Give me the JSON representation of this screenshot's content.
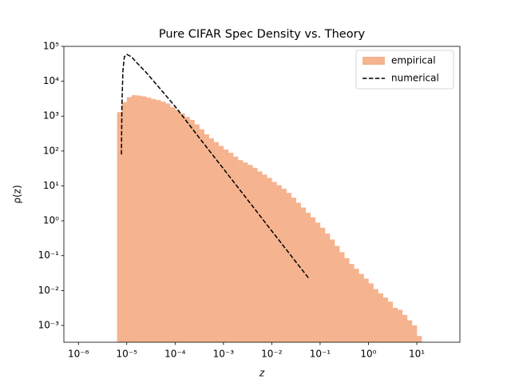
{
  "chart_data": {
    "type": "histogram",
    "title": "Pure CIFAR Spec Density vs. Theory",
    "xlabel": "z",
    "ylabel": "ρ(z)",
    "xscale": "log",
    "yscale": "log",
    "xlim": [
      5e-07,
      78
    ],
    "ylim": [
      0.00033,
      100000
    ],
    "xticks": [
      {
        "value": 1e-06,
        "label": "10⁻⁶"
      },
      {
        "value": 1e-05,
        "label": "10⁻⁵"
      },
      {
        "value": 0.0001,
        "label": "10⁻⁴"
      },
      {
        "value": 0.001,
        "label": "10⁻³"
      },
      {
        "value": 0.01,
        "label": "10⁻²"
      },
      {
        "value": 0.1,
        "label": "10⁻¹"
      },
      {
        "value": 1,
        "label": "10⁰"
      },
      {
        "value": 10,
        "label": "10¹"
      }
    ],
    "yticks": [
      {
        "value": 0.001,
        "label": "10⁻³"
      },
      {
        "value": 0.01,
        "label": "10⁻²"
      },
      {
        "value": 0.1,
        "label": "10⁻¹"
      },
      {
        "value": 1,
        "label": "10⁰"
      },
      {
        "value": 10,
        "label": "10¹"
      },
      {
        "value": 100,
        "label": "10²"
      },
      {
        "value": 1000,
        "label": "10³"
      },
      {
        "value": 10000,
        "label": "10⁴"
      },
      {
        "value": 100000,
        "label": "10⁵"
      }
    ],
    "legend": "upper right",
    "series": [
      {
        "name": "empirical",
        "type": "histogram",
        "color": "#f5b38f",
        "bins": [
          6.31e-06,
          7.943e-06,
          1e-05,
          1.259e-05,
          1.585e-05,
          1.995e-05,
          2.512e-05,
          3.162e-05,
          3.981e-05,
          5.012e-05,
          6.31e-05,
          7.943e-05,
          0.0001,
          0.0001259,
          0.0001585,
          0.0001995,
          0.0002512,
          0.0003162,
          0.0003981,
          0.0005012,
          0.000631,
          0.0007943,
          0.001,
          0.001259,
          0.001585,
          0.001995,
          0.002512,
          0.003162,
          0.003981,
          0.005012,
          0.00631,
          0.007943,
          0.01,
          0.01259,
          0.01585,
          0.01995,
          0.02512,
          0.03162,
          0.03981,
          0.05012,
          0.0631,
          0.07943,
          0.1,
          0.1259,
          0.1585,
          0.1995,
          0.2512,
          0.3162,
          0.3981,
          0.5012,
          0.631,
          0.7943,
          1,
          1.259,
          1.585,
          1.995,
          2.512,
          3.162,
          3.981,
          5.012,
          6.31,
          7.943,
          10,
          12.59
        ],
        "values": [
          1300,
          2500,
          3500,
          4000,
          3900,
          3700,
          3400,
          3100,
          2900,
          2600,
          2300,
          1800,
          1500,
          1200,
          950,
          780,
          580,
          420,
          300,
          230,
          180,
          140,
          110,
          89,
          69,
          55,
          47,
          40,
          33,
          26,
          21,
          17,
          13,
          10.5,
          8.3,
          6.3,
          4.6,
          3.3,
          2.4,
          1.7,
          1.26,
          0.89,
          0.63,
          0.43,
          0.29,
          0.19,
          0.126,
          0.085,
          0.058,
          0.042,
          0.03,
          0.022,
          0.016,
          0.011,
          0.0083,
          0.0063,
          0.0048,
          0.0032,
          0.0028,
          0.002,
          0.0014,
          0.001,
          0.0005
        ]
      },
      {
        "name": "numerical",
        "type": "line",
        "color": "#000000",
        "dash": "dashed",
        "x": [
          7.76e-06,
          7.94e-06,
          8.32e-06,
          8.91e-06,
          1e-05,
          1.26e-05,
          1.58e-05,
          2.51e-05,
          5.01e-05,
          0.0001,
          0.000316,
          0.001,
          0.00316,
          0.01,
          0.0316,
          0.0575
        ],
        "values": [
          80,
          2000,
          20000,
          50000,
          59000,
          50000,
          35000,
          18000,
          5900,
          1900,
          240,
          31,
          4,
          0.51,
          0.066,
          0.023
        ]
      }
    ]
  }
}
